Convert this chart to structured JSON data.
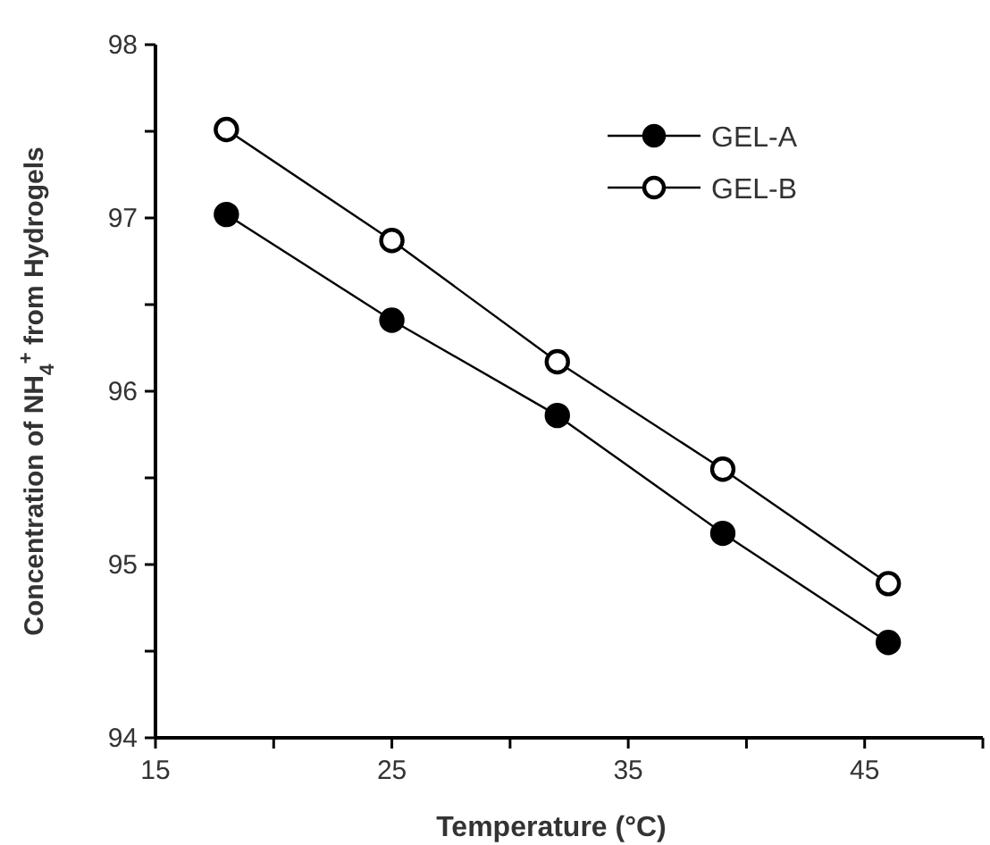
{
  "chart_data": {
    "type": "line",
    "xlabel": "Temperature (°C)",
    "ylabel": "Concentration of NH$_{4}$$^{+}$ from Hydrogels",
    "x": [
      18,
      25,
      32,
      39,
      46
    ],
    "series": [
      {
        "name": "GEL-A",
        "color": "#000000",
        "values": [
          97.02,
          96.41,
          95.86,
          95.18,
          94.55
        ],
        "marker": "circle"
      },
      {
        "name": "GEL-B",
        "color": "#000000",
        "values": [
          97.51,
          96.87,
          96.17,
          95.55,
          94.89
        ],
        "marker": "circle"
      }
    ],
    "xlim": [
      15,
      50
    ],
    "xticks": [
      15,
      {
        "value": 20,
        "label": null
      },
      25,
      {
        "value": 30,
        "label": null
      },
      35,
      {
        "value": 40,
        "label": null
      },
      45,
      {
        "value": 50,
        "label": null
      }
    ],
    "ylim": [
      94,
      98
    ],
    "yticks": [
      94,
      {
        "value": 94.5,
        "label": null
      },
      95,
      {
        "value": 95.5,
        "label": null
      },
      96,
      {
        "value": 96.5,
        "label": null
      },
      97,
      {
        "value": 97.5,
        "label": null
      },
      98
    ],
    "grid": false,
    "legend": "top right",
    "line_style": "solid"
  }
}
